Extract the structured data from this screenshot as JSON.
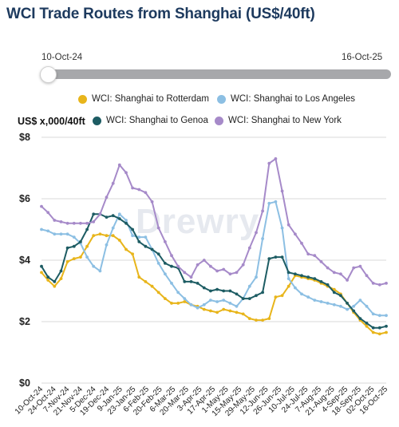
{
  "title": "WCI Trade Routes from Shanghai (US$/40ft)",
  "range": {
    "start": "10-Oct-24",
    "end": "16-Oct-25"
  },
  "watermark": "Drewry",
  "chart_data": {
    "type": "line",
    "ylabel": "US$ x,000/40ft",
    "ylim": [
      0,
      8
    ],
    "yticks": [
      "$0",
      "$2",
      "$4",
      "$6",
      "$8"
    ],
    "grid": "horizontal",
    "legend_position": "top",
    "x": [
      "10-Oct-24",
      "17-Oct-24",
      "24-Oct-24",
      "31-Oct-24",
      "7-Nov-24",
      "14-Nov-24",
      "21-Nov-24",
      "28-Nov-24",
      "5-Dec-24",
      "12-Dec-24",
      "19-Dec-24",
      "26-Dec-24",
      "2-Jan-25",
      "9-Jan-25",
      "16-Jan-25",
      "23-Jan-25",
      "30-Jan-25",
      "6-Feb-25",
      "13-Feb-25",
      "20-Feb-25",
      "27-Feb-25",
      "6-Mar-25",
      "13-Mar-25",
      "20-Mar-25",
      "27-Mar-25",
      "3-Apr-25",
      "10-Apr-25",
      "17-Apr-25",
      "24-Apr-25",
      "1-May-25",
      "8-May-25",
      "15-May-25",
      "22-May-25",
      "29-May-25",
      "5-Jun-25",
      "12-Jun-25",
      "19-Jun-25",
      "26-Jun-25",
      "3-Jul-25",
      "10-Jul-25",
      "17-Jul-25",
      "24-Jul-25",
      "31-Jul-25",
      "7-Aug-25",
      "14-Aug-25",
      "21-Aug-25",
      "28-Aug-25",
      "4-Sep-25",
      "11-Sep-25",
      "18-Sep-25",
      "25-Sep-25",
      "02-Oct-25",
      "9-Oct-25",
      "16-Oct-25"
    ],
    "xtick_labels": [
      "10-Oct-24",
      "24-Oct-24",
      "7-Nov-24",
      "21-Nov-24",
      "5-Dec-24",
      "19-Dec-24",
      "9-Jan-25",
      "23-Jan-25",
      "6-Feb-25",
      "20-Feb-25",
      "6-Mar-25",
      "20-Mar-25",
      "3-Apr-25",
      "17-Apr-25",
      "1-May-25",
      "15-May-25",
      "29-May-25",
      "12-Jun-25",
      "26-Jun-25",
      "10-Jul-25",
      "24-Jul-25",
      "7-Aug-25",
      "21-Aug-25",
      "4-Sep-25",
      "18-Sep-25",
      "02-Oct-25",
      "16-Oct-25"
    ],
    "series": [
      {
        "name": "WCI: Shanghai to Rotterdam",
        "color": "#e8b51b",
        "values": [
          3.6,
          3.35,
          3.15,
          3.4,
          3.95,
          4.05,
          4.1,
          4.45,
          4.8,
          4.85,
          4.8,
          4.8,
          4.65,
          4.35,
          4.2,
          3.45,
          3.3,
          3.15,
          2.95,
          2.75,
          2.6,
          2.6,
          2.65,
          2.55,
          2.5,
          2.4,
          2.35,
          2.3,
          2.4,
          2.35,
          2.3,
          2.25,
          2.1,
          2.05,
          2.05,
          2.1,
          2.8,
          2.85,
          3.15,
          3.5,
          3.45,
          3.4,
          3.35,
          3.25,
          3.15,
          3.05,
          2.9,
          2.6,
          2.3,
          2.05,
          1.85,
          1.65,
          1.6,
          1.65
        ]
      },
      {
        "name": "WCI: Shanghai to Los Angeles",
        "color": "#8cbfe3",
        "values": [
          5.0,
          4.95,
          4.85,
          4.85,
          4.85,
          4.75,
          4.55,
          4.1,
          3.8,
          3.65,
          4.5,
          5.05,
          5.5,
          5.3,
          4.8,
          4.75,
          4.75,
          4.35,
          3.9,
          3.55,
          3.25,
          2.95,
          2.75,
          2.55,
          2.45,
          2.55,
          2.7,
          2.65,
          2.7,
          2.6,
          2.5,
          2.75,
          3.15,
          3.45,
          4.7,
          5.85,
          5.9,
          5.05,
          3.4,
          3.1,
          2.9,
          2.8,
          2.7,
          2.65,
          2.6,
          2.55,
          2.5,
          2.4,
          2.5,
          2.7,
          2.5,
          2.25,
          2.2,
          2.2
        ]
      },
      {
        "name": "WCI: Shanghai to Genoa",
        "color": "#1d5c63",
        "values": [
          3.8,
          3.45,
          3.3,
          3.65,
          4.4,
          4.45,
          4.6,
          5.0,
          5.5,
          5.5,
          5.4,
          5.45,
          5.35,
          5.2,
          5.0,
          4.6,
          4.45,
          4.35,
          4.2,
          3.9,
          3.8,
          3.75,
          3.3,
          3.3,
          3.25,
          3.1,
          3.0,
          3.05,
          3.0,
          3.0,
          2.9,
          2.75,
          2.75,
          2.85,
          2.95,
          4.05,
          4.1,
          4.1,
          3.6,
          3.55,
          3.5,
          3.45,
          3.4,
          3.3,
          3.2,
          2.95,
          2.85,
          2.6,
          2.35,
          2.1,
          1.95,
          1.8,
          1.8,
          1.85
        ]
      },
      {
        "name": "WCI: Shanghai to New York",
        "color": "#a68ac9",
        "values": [
          5.75,
          5.55,
          5.3,
          5.25,
          5.2,
          5.2,
          5.2,
          5.2,
          5.25,
          5.5,
          6.05,
          6.5,
          7.1,
          6.85,
          6.35,
          6.3,
          6.2,
          5.9,
          5.05,
          4.6,
          4.15,
          3.8,
          3.6,
          3.45,
          3.85,
          4.0,
          3.8,
          3.65,
          3.7,
          3.55,
          3.6,
          3.85,
          4.4,
          4.9,
          5.6,
          7.15,
          7.3,
          6.25,
          5.15,
          4.85,
          4.55,
          4.2,
          4.15,
          3.95,
          3.75,
          3.6,
          3.55,
          3.35,
          3.75,
          3.8,
          3.5,
          3.25,
          3.2,
          3.25
        ]
      }
    ]
  }
}
